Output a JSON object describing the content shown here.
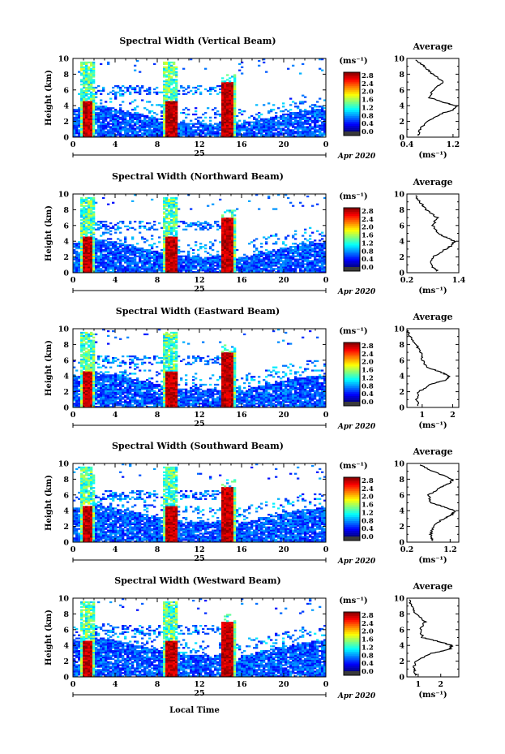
{
  "figure": {
    "date_label": "Apr 2020",
    "day_label": "25",
    "xlabel_bottom": "Local Time"
  },
  "chart_data": [
    {
      "type": "heatmap",
      "title": "Spectral Width (Vertical Beam)",
      "ylabel": "Height (km)",
      "xlabel": "Local Time",
      "xlim": [
        0,
        24
      ],
      "x_ticks": [
        "0",
        "4",
        "8",
        "12",
        "16",
        "20",
        "0"
      ],
      "ylim": [
        0,
        10
      ],
      "y_ticks": [
        "0",
        "2",
        "4",
        "6",
        "8",
        "10"
      ],
      "colorbar": {
        "unit": "(ms⁻¹)",
        "ticks": [
          "0.0",
          "0.4",
          "0.8",
          "1.2",
          "1.6",
          "2.0",
          "2.4",
          "2.8"
        ],
        "range": [
          0,
          3.0
        ]
      },
      "rain_events_hours": [
        [
          0.8,
          2.0
        ],
        [
          8.5,
          10.0
        ],
        [
          14.0,
          15.5
        ]
      ],
      "average_profile": {
        "title": "Average",
        "xlabel": "(ms⁻¹)",
        "x_ticks": [
          "0.4",
          "1.2"
        ],
        "xlim": [
          0.4,
          1.3
        ],
        "height_km": [
          0.2,
          1.0,
          2.0,
          3.0,
          3.5,
          4.0,
          4.5,
          5.0,
          6.0,
          7.0,
          8.0,
          9.0,
          9.8
        ],
        "width": [
          0.6,
          0.62,
          0.75,
          1.0,
          1.22,
          1.25,
          1.0,
          0.8,
          0.85,
          1.05,
          0.85,
          0.7,
          0.55
        ]
      }
    },
    {
      "type": "heatmap",
      "title": "Spectral Width (Northward Beam)",
      "ylabel": "Height (km)",
      "xlabel": "Local Time",
      "xlim": [
        0,
        24
      ],
      "x_ticks": [
        "0",
        "4",
        "8",
        "12",
        "16",
        "20",
        "0"
      ],
      "ylim": [
        0,
        10
      ],
      "y_ticks": [
        "0",
        "2",
        "4",
        "6",
        "8",
        "10"
      ],
      "colorbar": {
        "unit": "(ms⁻¹)",
        "ticks": [
          "0.0",
          "0.4",
          "0.8",
          "1.2",
          "1.6",
          "2.0",
          "2.4",
          "2.8"
        ],
        "range": [
          0,
          3.0
        ]
      },
      "rain_events_hours": [
        [
          0.8,
          2.0
        ],
        [
          8.5,
          10.0
        ],
        [
          14.0,
          15.5
        ]
      ],
      "average_profile": {
        "title": "Average",
        "xlabel": "(ms⁻¹)",
        "x_ticks": [
          "0.2",
          "1.4"
        ],
        "xlim": [
          0.2,
          1.4
        ],
        "height_km": [
          0.2,
          1.0,
          2.0,
          3.0,
          3.5,
          4.0,
          4.5,
          5.0,
          6.0,
          7.0,
          8.0,
          9.0,
          9.8
        ],
        "width": [
          0.9,
          0.75,
          0.8,
          1.1,
          1.25,
          1.3,
          1.1,
          0.9,
          0.8,
          0.9,
          0.65,
          0.5,
          0.4
        ]
      }
    },
    {
      "type": "heatmap",
      "title": "Spectral Width (Eastward Beam)",
      "ylabel": "Height (km)",
      "xlabel": "Local Time",
      "xlim": [
        0,
        24
      ],
      "x_ticks": [
        "0",
        "4",
        "8",
        "12",
        "16",
        "20",
        "0"
      ],
      "ylim": [
        0,
        10
      ],
      "y_ticks": [
        "0",
        "2",
        "4",
        "6",
        "8",
        "10"
      ],
      "colorbar": {
        "unit": "(ms⁻¹)",
        "ticks": [
          "0.0",
          "0.4",
          "0.8",
          "1.2",
          "1.6",
          "2.0",
          "2.4",
          "2.8"
        ],
        "range": [
          0,
          3.0
        ]
      },
      "rain_events_hours": [
        [
          0.8,
          2.0
        ],
        [
          8.5,
          10.0
        ],
        [
          14.0,
          15.5
        ]
      ],
      "average_profile": {
        "title": "Average",
        "xlabel": "(ms⁻¹)",
        "x_ticks": [
          "1",
          "2"
        ],
        "xlim": [
          0.5,
          2.2
        ],
        "height_km": [
          0.2,
          1.0,
          2.0,
          3.0,
          3.5,
          4.0,
          4.5,
          5.0,
          6.0,
          7.0,
          8.0,
          9.0,
          9.8
        ],
        "width": [
          0.9,
          0.8,
          0.9,
          1.3,
          1.8,
          1.9,
          1.6,
          1.2,
          1.0,
          0.95,
          0.8,
          0.6,
          0.5
        ]
      }
    },
    {
      "type": "heatmap",
      "title": "Spectral Width (Southward Beam)",
      "ylabel": "Height (km)",
      "xlabel": "Local Time",
      "xlim": [
        0,
        24
      ],
      "x_ticks": [
        "0",
        "4",
        "8",
        "12",
        "16",
        "20",
        "0"
      ],
      "ylim": [
        0,
        10
      ],
      "y_ticks": [
        "0",
        "2",
        "4",
        "6",
        "8",
        "10"
      ],
      "colorbar": {
        "unit": "(ms⁻¹)",
        "ticks": [
          "0.0",
          "0.4",
          "0.8",
          "1.2",
          "1.6",
          "2.0",
          "2.4",
          "2.8"
        ],
        "range": [
          0,
          3.0
        ]
      },
      "rain_events_hours": [
        [
          0.8,
          2.0
        ],
        [
          8.5,
          10.0
        ],
        [
          14.0,
          15.5
        ]
      ],
      "average_profile": {
        "title": "Average",
        "xlabel": "(ms⁻¹)",
        "x_ticks": [
          "0.2",
          "1.2"
        ],
        "xlim": [
          0.2,
          1.4
        ],
        "height_km": [
          0.2,
          1.0,
          2.0,
          3.0,
          3.5,
          4.0,
          4.5,
          5.0,
          6.0,
          7.0,
          7.5,
          8.0,
          9.0,
          9.8
        ],
        "width": [
          0.8,
          0.75,
          0.8,
          1.05,
          1.25,
          1.3,
          1.05,
          0.75,
          0.7,
          1.0,
          1.2,
          1.25,
          0.8,
          0.5
        ]
      }
    },
    {
      "type": "heatmap",
      "title": "Spectral Width (Westward Beam)",
      "ylabel": "Height (km)",
      "xlabel": "Local Time",
      "xlim": [
        0,
        24
      ],
      "x_ticks": [
        "0",
        "4",
        "8",
        "12",
        "16",
        "20",
        "0"
      ],
      "ylim": [
        0,
        10
      ],
      "y_ticks": [
        "0",
        "2",
        "4",
        "6",
        "8",
        "10"
      ],
      "colorbar": {
        "unit": "(ms⁻¹)",
        "ticks": [
          "0.0",
          "0.4",
          "0.8",
          "1.2",
          "1.6",
          "2.0",
          "2.4",
          "2.8"
        ],
        "range": [
          0,
          3.0
        ]
      },
      "rain_events_hours": [
        [
          0.8,
          2.0
        ],
        [
          8.5,
          10.0
        ],
        [
          14.0,
          15.5
        ]
      ],
      "average_profile": {
        "title": "Average",
        "xlabel": "(ms⁻¹)",
        "x_ticks": [
          "1",
          "2"
        ],
        "xlim": [
          0.5,
          2.8
        ],
        "height_km": [
          0.2,
          1.0,
          2.0,
          3.0,
          3.5,
          4.0,
          4.5,
          5.0,
          6.0,
          7.0,
          8.0,
          9.0,
          9.8
        ],
        "width": [
          0.9,
          0.8,
          0.9,
          1.6,
          2.4,
          2.5,
          1.9,
          1.2,
          1.1,
          1.3,
          0.9,
          0.7,
          0.6
        ]
      }
    }
  ]
}
